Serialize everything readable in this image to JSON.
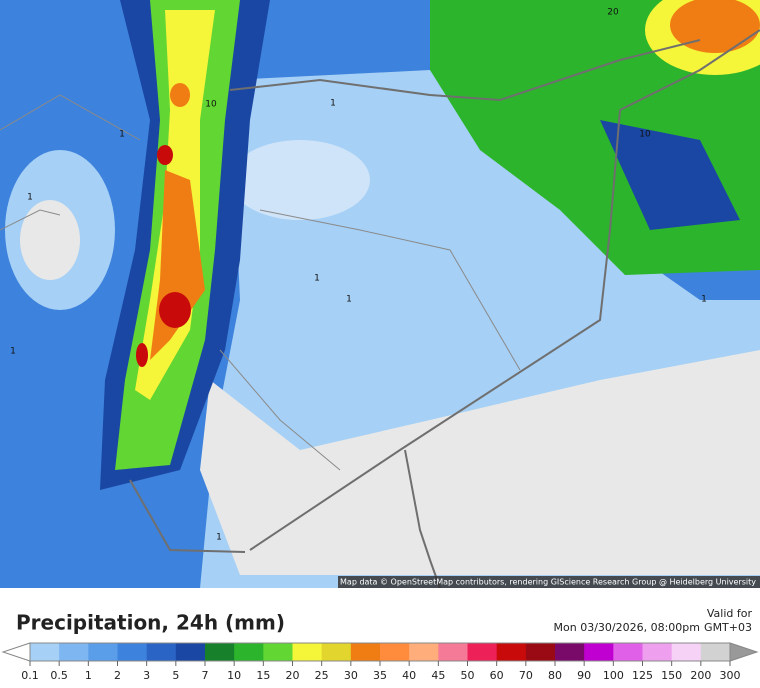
{
  "map": {
    "attribution": "Map data © OpenStreetMap contributors, rendering GIScience Research Group @ Heidelberg University",
    "contour_labels": [
      "20",
      "10",
      "10",
      "1",
      "1",
      "1",
      "1",
      "1",
      "1",
      "1",
      "1"
    ]
  },
  "legend": {
    "title": "Precipitation, 24h (mm)",
    "valid_label": "Valid for",
    "valid_time": "Mon 03/30/2026, 08:00pm",
    "timezone": "GMT+03",
    "ticks": [
      0.1,
      0.5,
      1,
      2,
      3,
      5,
      7,
      10,
      15,
      20,
      25,
      30,
      35,
      40,
      45,
      50,
      60,
      70,
      80,
      90,
      100,
      125,
      150,
      200,
      300
    ],
    "colors": [
      "#a6d0f5",
      "#7db6f0",
      "#5a9de8",
      "#3d82dc",
      "#2a64c4",
      "#1a47a3",
      "#17802a",
      "#2cb52c",
      "#62d632",
      "#f5f53a",
      "#e2d62e",
      "#f07d14",
      "#ff8c3c",
      "#ffad7a",
      "#f57a98",
      "#ee2058",
      "#c80a0a",
      "#9a0a14",
      "#7a0a6a",
      "#c000d0",
      "#e060e8",
      "#eea0ee",
      "#f6d2f6",
      "#d2d2d2"
    ]
  }
}
